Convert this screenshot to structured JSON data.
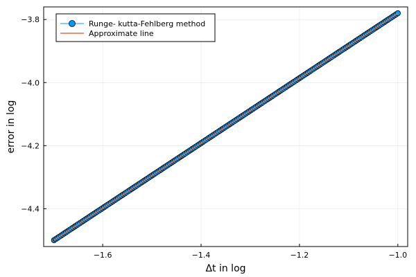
{
  "chart_data": {
    "type": "line",
    "xlabel": "Δt in log",
    "ylabel": "error in log",
    "xlim": [
      -1.72,
      -0.98
    ],
    "ylim": [
      -4.52,
      -3.76
    ],
    "xticks": [
      -1.6,
      -1.4,
      -1.2,
      -1.0
    ],
    "xtick_labels": [
      "−1.6",
      "−1.4",
      "−1.2",
      "−1.0"
    ],
    "yticks": [
      -4.4,
      -4.2,
      -4.0,
      -3.8
    ],
    "ytick_labels": [
      "−4.4",
      "−4.2",
      "−4.0",
      "−3.8"
    ],
    "grid": true,
    "legend_position": "top-left",
    "series": [
      {
        "name": "Runge- kutta-Fehlberg method",
        "kind": "scatter-line",
        "color": "#009af9",
        "x_start": -1.699,
        "x_end": -1.0,
        "y_start": -4.5,
        "y_end": -3.78,
        "n_points": 200
      },
      {
        "name": "Approximate line",
        "kind": "line",
        "color": "#e26f46",
        "x": [
          -1.699,
          -1.0
        ],
        "y": [
          -4.5,
          -3.78
        ]
      }
    ]
  }
}
